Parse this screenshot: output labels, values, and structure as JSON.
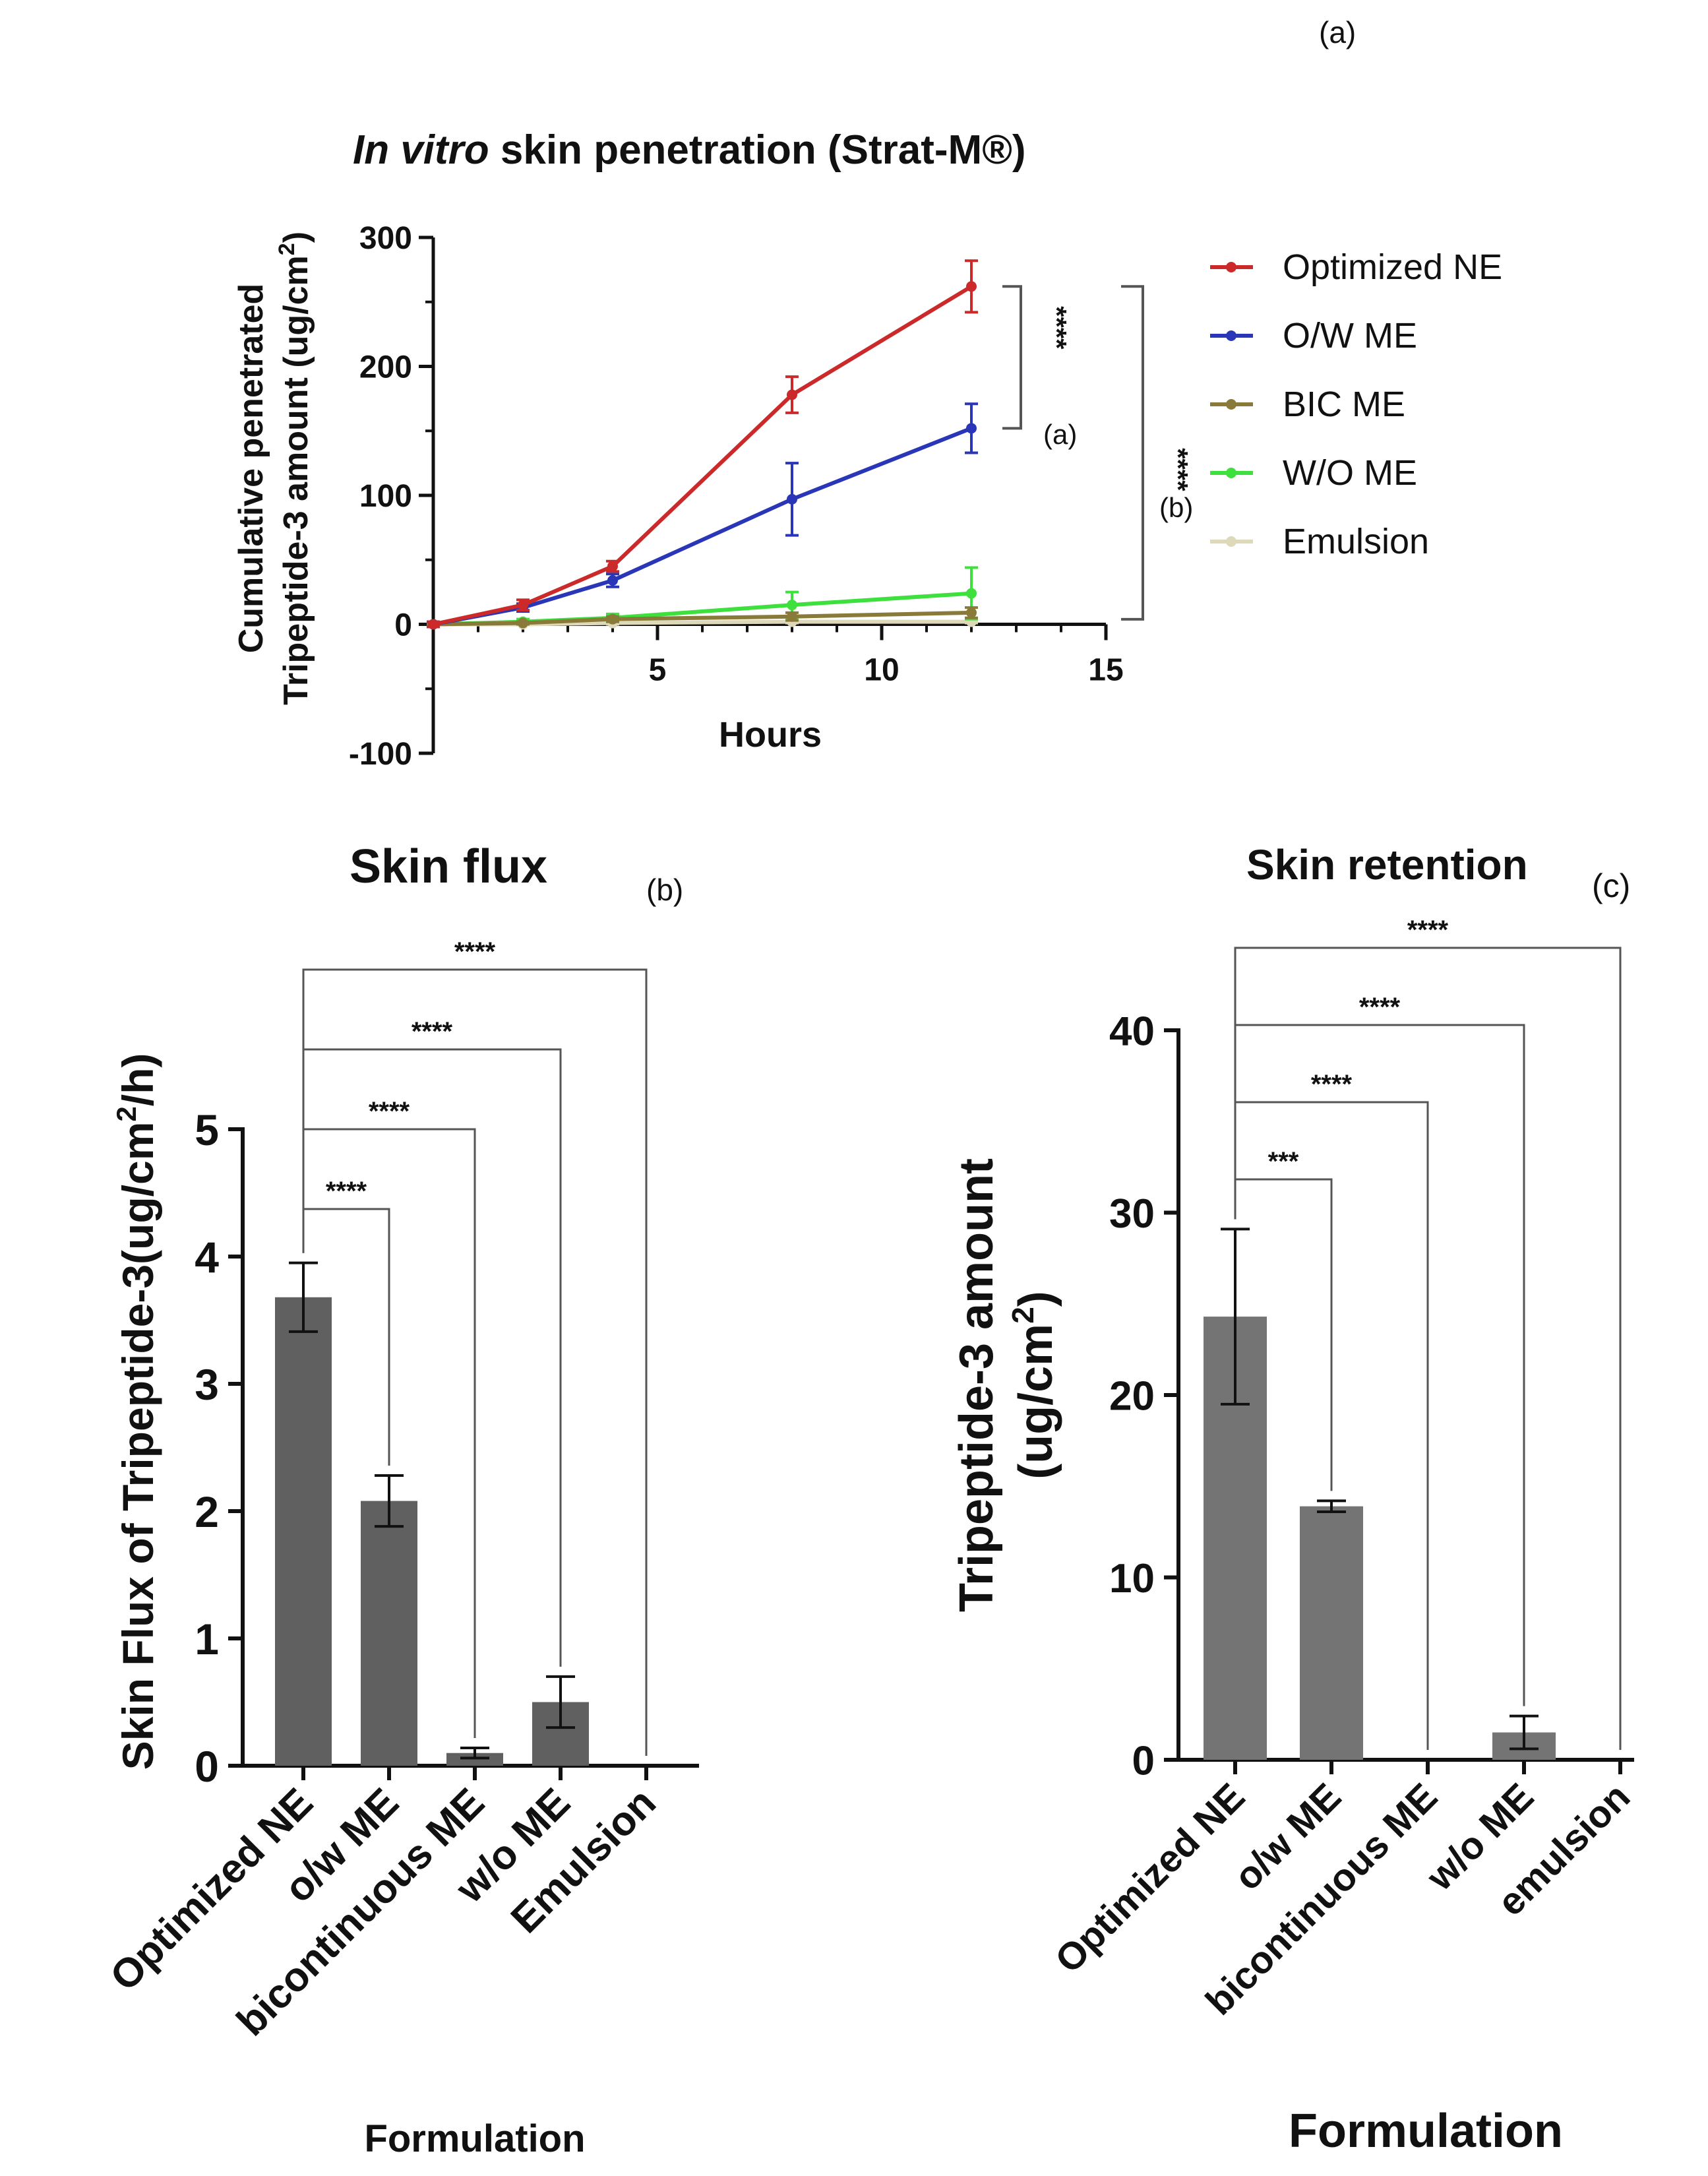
{
  "colors": {
    "red": "#cc2a2a",
    "blue": "#2a36b8",
    "olive": "#8a7a3a",
    "green": "#3ee03e",
    "beige": "#ded9b8",
    "bar": "#606060",
    "bar_c": "#747474",
    "axis": "#111111",
    "bracket": "#555555"
  },
  "chart_data": [
    {
      "type": "line",
      "panel_label": "(a)",
      "title_italic": "In vitro",
      "title_rest": " skin penetration (Strat-M®)",
      "xlabel": "Hours",
      "ylabel_line1": "Cumulative penetrated",
      "ylabel_line2": "Tripeptide-3 amount (ug/cm",
      "ylabel_sup": "2",
      "ylabel_end": ")",
      "xlim": [
        0,
        15
      ],
      "ylim": [
        -100,
        300
      ],
      "xticks": [
        "5",
        "10",
        "15"
      ],
      "yticks": [
        "300",
        "200",
        "100",
        "0",
        "-100"
      ],
      "x": [
        0,
        2,
        4,
        8,
        12
      ],
      "series": [
        {
          "name": "Optimized  NE",
          "color_key": "red",
          "values": [
            0,
            15,
            45,
            178,
            262
          ],
          "errors": [
            2,
            4,
            4,
            14,
            20
          ]
        },
        {
          "name": "O/W ME",
          "color_key": "blue",
          "values": [
            0,
            13,
            34,
            97,
            152
          ],
          "errors": [
            2,
            3,
            5,
            28,
            19
          ]
        },
        {
          "name": "BIC ME",
          "color_key": "olive",
          "values": [
            0,
            1,
            4,
            6,
            9
          ],
          "errors": [
            1,
            1,
            2,
            3,
            4
          ]
        },
        {
          "name": "W/O ME",
          "color_key": "green",
          "values": [
            0,
            2,
            5,
            15,
            24
          ],
          "errors": [
            1,
            2,
            3,
            10,
            20
          ]
        },
        {
          "name": "Emulsion",
          "color_key": "beige",
          "values": [
            0,
            0,
            1,
            2,
            2
          ],
          "errors": [
            0,
            0,
            1,
            1,
            1
          ]
        }
      ],
      "annotations": [
        {
          "stars": "****",
          "label": "(a)"
        },
        {
          "stars": "****",
          "label": "(b)"
        }
      ]
    },
    {
      "type": "bar",
      "panel_label": "(b)",
      "title": "Skin flux",
      "xlabel": "Formulation",
      "ylabel_prefix": "Skin Flux of Tripeptide-3(ug/cm",
      "ylabel_sup": "2",
      "ylabel_suffix": "/h)",
      "ylim": [
        0,
        5
      ],
      "yticks": [
        "0",
        "1",
        "2",
        "3",
        "4",
        "5"
      ],
      "categories": [
        "Optimized NE",
        "o/w ME",
        "bicontinuous ME",
        "w/o ME",
        "Emulsion"
      ],
      "values": [
        3.68,
        2.08,
        0.1,
        0.5,
        0
      ],
      "errors": [
        0.27,
        0.2,
        0.04,
        0.2,
        0
      ],
      "significance": [
        "****",
        "****",
        "****",
        "****"
      ]
    },
    {
      "type": "bar",
      "panel_label": "(c)",
      "title": "Skin retention",
      "xlabel": "Formulation",
      "ylabel_line1": "Tripeptide-3 amount",
      "ylabel_line2": "(ug/cm",
      "ylabel_sup": "2",
      "ylabel_end": ")",
      "ylim": [
        0,
        40
      ],
      "yticks": [
        "0",
        "10",
        "20",
        "30",
        "40"
      ],
      "categories": [
        "Optimized NE",
        "o/w ME",
        "bicontinuous ME",
        "w/o ME",
        "emulsion"
      ],
      "values": [
        24.3,
        13.9,
        0,
        1.5,
        0
      ],
      "errors": [
        4.8,
        0.3,
        0,
        0.9,
        0
      ],
      "significance": [
        "***",
        "****",
        "****",
        "****"
      ]
    }
  ]
}
